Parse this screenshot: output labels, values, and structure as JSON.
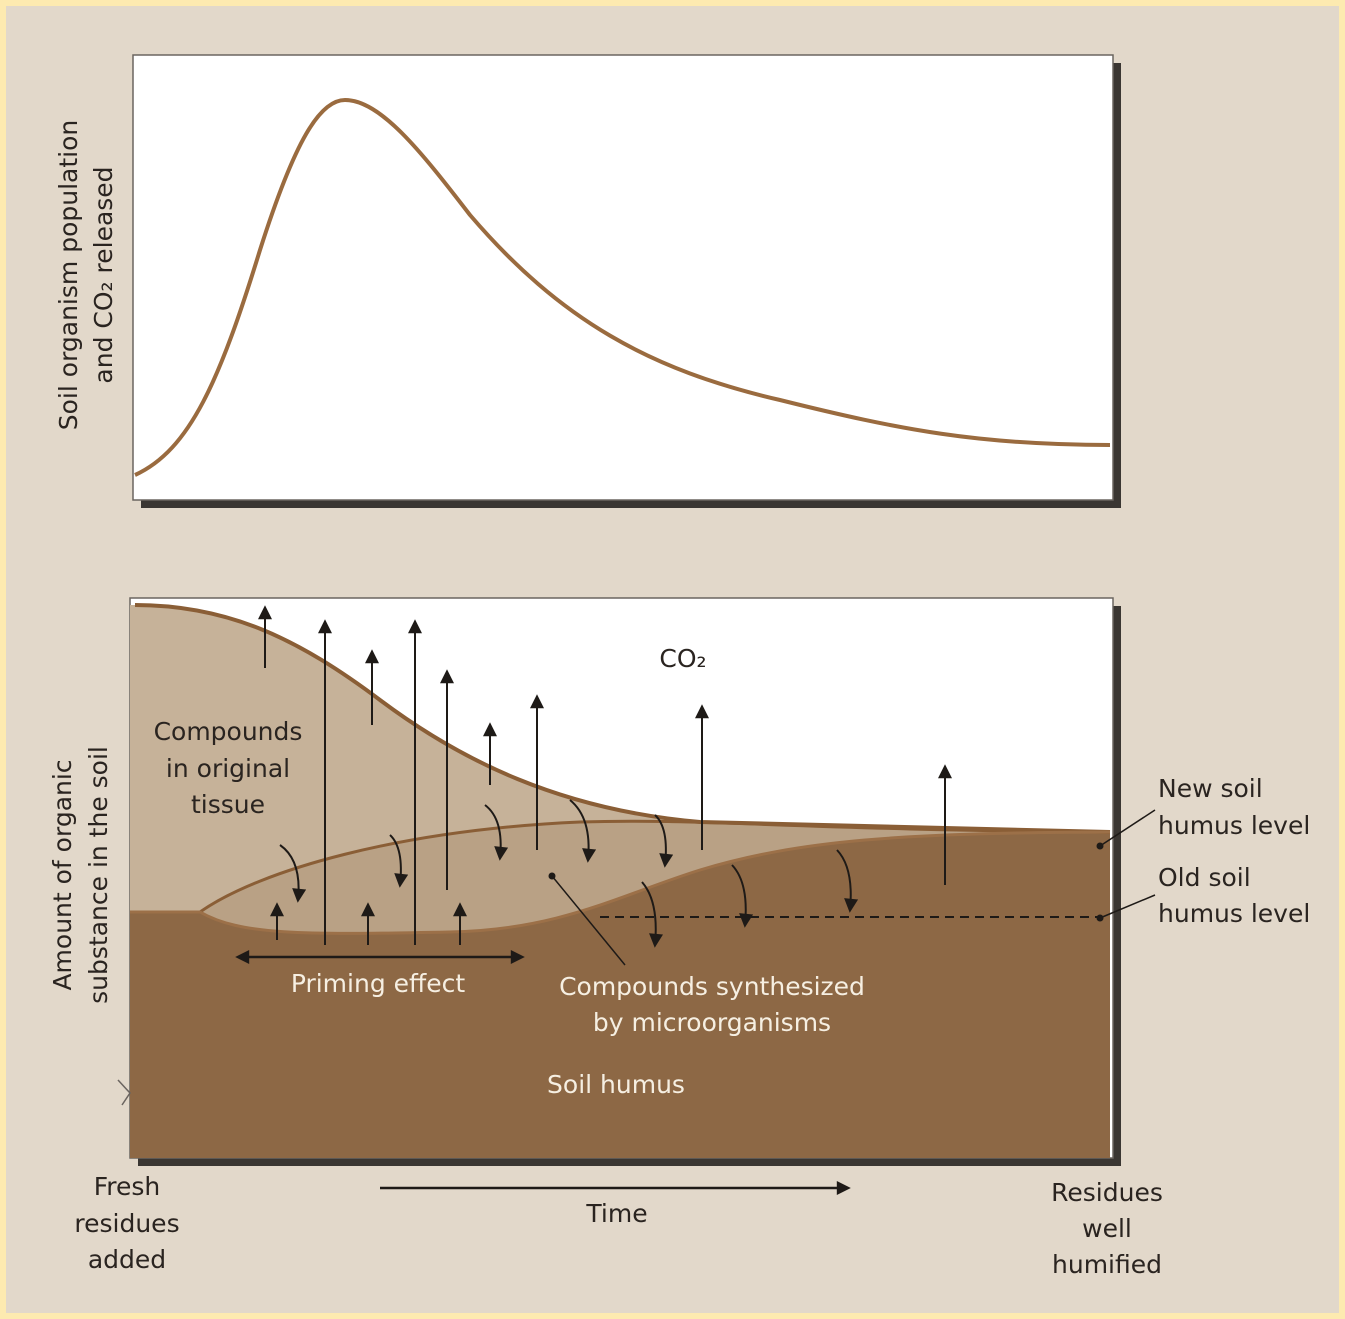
{
  "top_panel": {
    "y_label": [
      "Soil organism population",
      "and CO₂ released"
    ]
  },
  "bottom_panel": {
    "y_label": [
      "Amount of organic",
      "substance in the soil"
    ],
    "co2": "CO₂",
    "original_tissue": [
      "Compounds",
      "in original",
      "tissue"
    ],
    "priming_effect": "Priming effect",
    "synthesized": [
      "Compounds synthesized",
      "by microorganisms"
    ],
    "soil_humus": "Soil humus",
    "new_level": [
      "New soil",
      "humus level"
    ],
    "old_level": [
      "Old soil",
      "humus level"
    ]
  },
  "x_axis": {
    "start": [
      "Fresh",
      "residues",
      "added"
    ],
    "label": "Time",
    "end": [
      "Residues",
      "well",
      "humified"
    ]
  }
}
